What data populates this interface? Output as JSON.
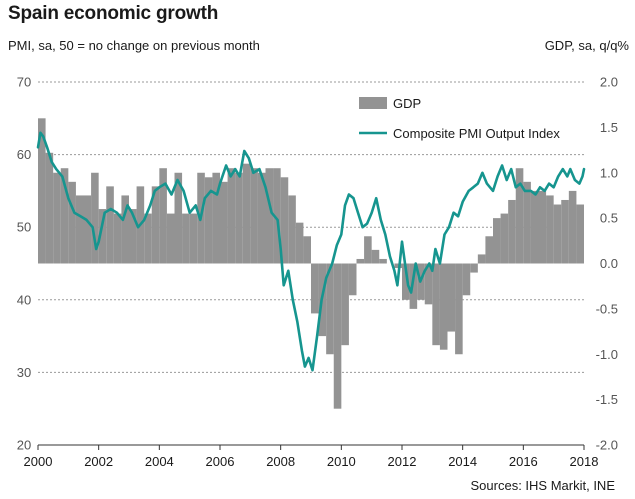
{
  "title": "Spain economic growth",
  "left_axis_label": "PMI, sa, 50 = no change on previous month",
  "right_axis_label": "GDP, sa, q/q%",
  "source": "Sources: IHS Markit, INE",
  "colors": {
    "gdp": "#939393",
    "pmi": "#16958f",
    "grid": "#9a9a9a"
  },
  "chart_data": {
    "type": "bar",
    "title": "Spain economic growth",
    "legend_position": "top-right",
    "grid": true,
    "left_axis": {
      "label": "PMI, sa, 50 = no change on previous month",
      "ylim": [
        20,
        70
      ],
      "ticks": [
        "20",
        "30",
        "40",
        "50",
        "60",
        "70"
      ]
    },
    "right_axis": {
      "label": "GDP, sa, q/q%",
      "ylim": [
        -2.0,
        2.0
      ],
      "ticks": [
        "-2.0",
        "-1.5",
        "-1.0",
        "-0.5",
        "0.0",
        "0.5",
        "1.0",
        "1.5",
        "2.0"
      ]
    },
    "x_axis": {
      "xlim": [
        2000,
        2018
      ],
      "ticks": [
        "2000",
        "2002",
        "2004",
        "2006",
        "2008",
        "2010",
        "2012",
        "2014",
        "2016",
        "2018"
      ]
    },
    "series": [
      {
        "name": "GDP",
        "kind": "bar",
        "axis": "right",
        "x_start": 2000.0,
        "x_step": 0.25,
        "values": [
          1.6,
          1.22,
          1.0,
          1.05,
          0.9,
          0.75,
          0.75,
          1.0,
          0.6,
          0.85,
          0.55,
          0.75,
          0.6,
          0.85,
          0.55,
          0.85,
          1.05,
          0.55,
          1.0,
          0.55,
          0.55,
          1.0,
          0.95,
          1.0,
          0.9,
          1.05,
          1.0,
          1.1,
          1.05,
          1.0,
          1.05,
          1.05,
          0.95,
          0.75,
          0.45,
          0.3,
          -0.55,
          -0.8,
          -1.0,
          -1.6,
          -0.9,
          -0.35,
          0.05,
          0.3,
          0.15,
          0.05,
          0.0,
          -0.05,
          -0.4,
          -0.5,
          -0.4,
          -0.45,
          -0.9,
          -0.95,
          -0.75,
          -1.0,
          -0.35,
          -0.1,
          0.1,
          0.3,
          0.5,
          0.55,
          0.7,
          1.05,
          0.9,
          0.8,
          0.8,
          0.75,
          0.65,
          0.7,
          0.8,
          0.65,
          0.8,
          0.85,
          0.8,
          0.7
        ]
      },
      {
        "name": "Composite PMI Output Index",
        "kind": "line",
        "axis": "left",
        "points": [
          [
            2000.0,
            61
          ],
          [
            2000.08,
            63
          ],
          [
            2000.17,
            62.5
          ],
          [
            2000.3,
            61
          ],
          [
            2000.45,
            59
          ],
          [
            2000.6,
            58
          ],
          [
            2000.8,
            57
          ],
          [
            2001.0,
            54
          ],
          [
            2001.2,
            52
          ],
          [
            2001.4,
            51.5
          ],
          [
            2001.6,
            51
          ],
          [
            2001.8,
            50
          ],
          [
            2001.92,
            47
          ],
          [
            2002.0,
            48
          ],
          [
            2002.2,
            52
          ],
          [
            2002.4,
            52.5
          ],
          [
            2002.6,
            52
          ],
          [
            2002.8,
            51
          ],
          [
            2002.95,
            53
          ],
          [
            2003.1,
            52
          ],
          [
            2003.3,
            50
          ],
          [
            2003.5,
            51
          ],
          [
            2003.7,
            53
          ],
          [
            2003.85,
            55
          ],
          [
            2004.0,
            55.5
          ],
          [
            2004.2,
            56
          ],
          [
            2004.4,
            54.5
          ],
          [
            2004.6,
            56.5
          ],
          [
            2004.8,
            55
          ],
          [
            2005.0,
            52
          ],
          [
            2005.2,
            53
          ],
          [
            2005.35,
            51
          ],
          [
            2005.5,
            54
          ],
          [
            2005.7,
            55
          ],
          [
            2005.9,
            54.5
          ],
          [
            2006.0,
            56
          ],
          [
            2006.2,
            58.5
          ],
          [
            2006.35,
            57
          ],
          [
            2006.5,
            58
          ],
          [
            2006.65,
            57
          ],
          [
            2006.8,
            60.5
          ],
          [
            2006.95,
            59.5
          ],
          [
            2007.1,
            57.5
          ],
          [
            2007.3,
            58
          ],
          [
            2007.5,
            55.5
          ],
          [
            2007.7,
            52
          ],
          [
            2007.9,
            51
          ],
          [
            2008.0,
            47
          ],
          [
            2008.1,
            42
          ],
          [
            2008.25,
            44
          ],
          [
            2008.4,
            40
          ],
          [
            2008.55,
            37
          ],
          [
            2008.7,
            33
          ],
          [
            2008.8,
            30.8
          ],
          [
            2008.92,
            32
          ],
          [
            2009.05,
            30.3
          ],
          [
            2009.2,
            35
          ],
          [
            2009.35,
            40
          ],
          [
            2009.5,
            43
          ],
          [
            2009.7,
            45
          ],
          [
            2009.85,
            47.5
          ],
          [
            2010.0,
            49
          ],
          [
            2010.12,
            53
          ],
          [
            2010.25,
            54.5
          ],
          [
            2010.4,
            54
          ],
          [
            2010.55,
            52
          ],
          [
            2010.7,
            50
          ],
          [
            2010.85,
            50.5
          ],
          [
            2011.0,
            52
          ],
          [
            2011.15,
            54
          ],
          [
            2011.3,
            51
          ],
          [
            2011.45,
            49
          ],
          [
            2011.6,
            46
          ],
          [
            2011.75,
            44
          ],
          [
            2011.85,
            42
          ],
          [
            2012.0,
            48
          ],
          [
            2012.1,
            45
          ],
          [
            2012.2,
            42
          ],
          [
            2012.3,
            41
          ],
          [
            2012.45,
            45
          ],
          [
            2012.6,
            42.5
          ],
          [
            2012.75,
            44
          ],
          [
            2012.9,
            45
          ],
          [
            2013.0,
            44
          ],
          [
            2013.1,
            47
          ],
          [
            2013.25,
            45
          ],
          [
            2013.4,
            49
          ],
          [
            2013.55,
            50
          ],
          [
            2013.7,
            52
          ],
          [
            2013.85,
            51.5
          ],
          [
            2014.0,
            53.5
          ],
          [
            2014.2,
            55
          ],
          [
            2014.35,
            55.5
          ],
          [
            2014.5,
            56
          ],
          [
            2014.65,
            57.5
          ],
          [
            2014.8,
            56
          ],
          [
            2015.0,
            55
          ],
          [
            2015.15,
            57
          ],
          [
            2015.3,
            58.5
          ],
          [
            2015.45,
            56.5
          ],
          [
            2015.6,
            58
          ],
          [
            2015.75,
            55.5
          ],
          [
            2015.9,
            56
          ],
          [
            2016.05,
            55
          ],
          [
            2016.25,
            55
          ],
          [
            2016.4,
            54.5
          ],
          [
            2016.55,
            55.5
          ],
          [
            2016.7,
            55
          ],
          [
            2016.85,
            56
          ],
          [
            2017.0,
            55.5
          ],
          [
            2017.15,
            57
          ],
          [
            2017.3,
            58
          ],
          [
            2017.45,
            57
          ],
          [
            2017.55,
            58
          ],
          [
            2017.7,
            56.5
          ],
          [
            2017.85,
            56
          ],
          [
            2017.95,
            57
          ],
          [
            2018.0,
            58
          ]
        ]
      }
    ]
  }
}
